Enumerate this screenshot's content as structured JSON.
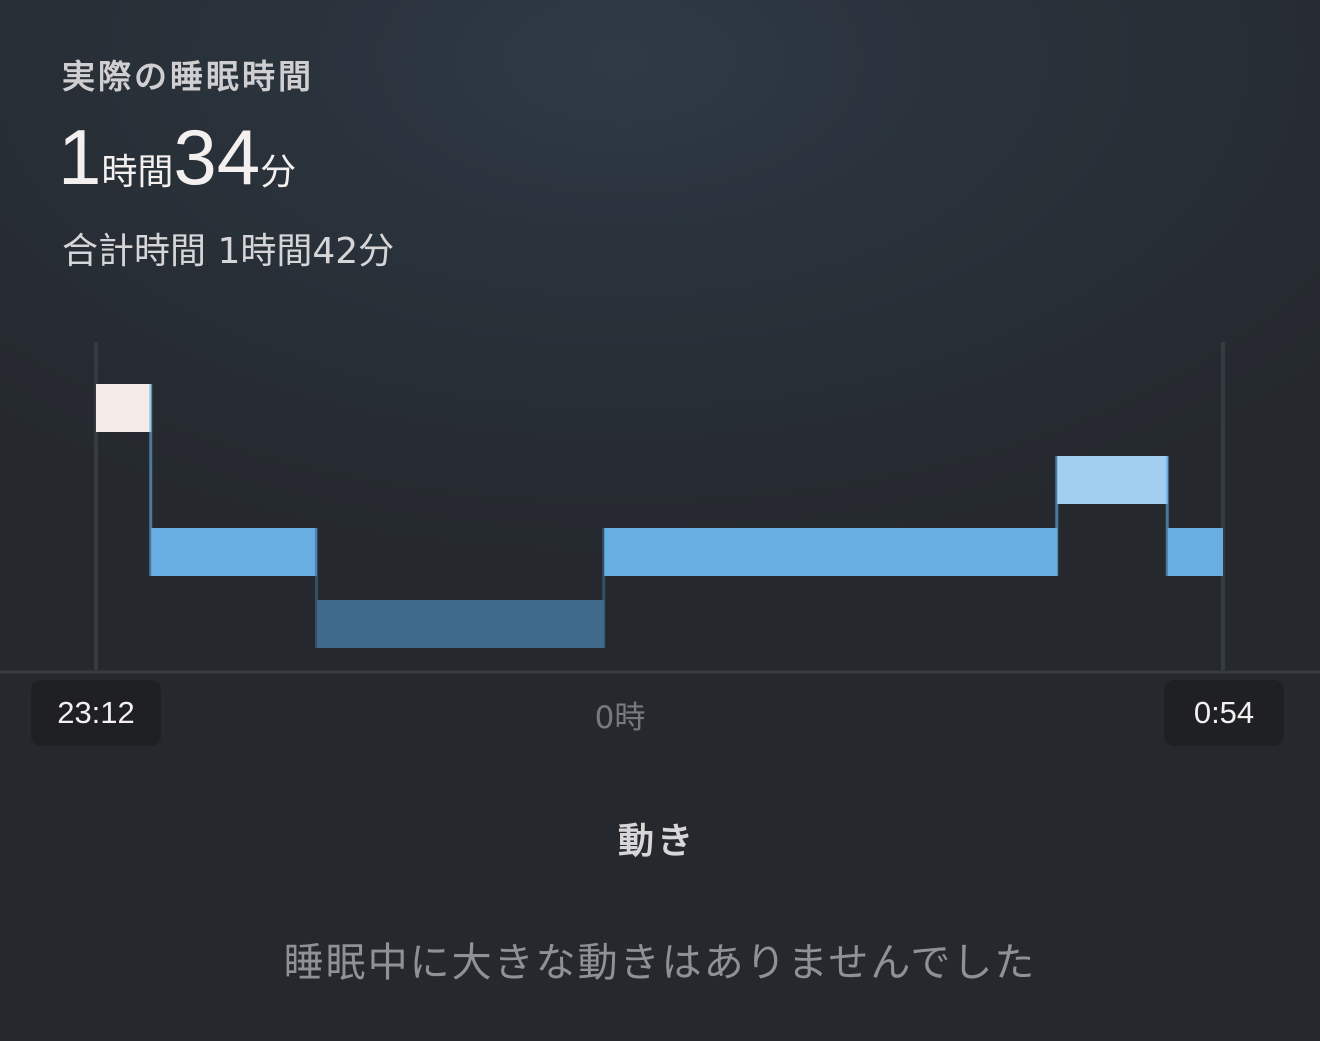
{
  "header": {
    "label": "実際の睡眠時間",
    "actual_hours": "1",
    "hours_unit": "時間",
    "actual_minutes": "34",
    "minutes_unit": "分",
    "total": "合計時間 1時間42分"
  },
  "chart_data": {
    "type": "step",
    "x_start": "23:12",
    "x_end": "0:54",
    "x_tick": "0時",
    "level_colors": [
      "#f4ece9",
      "#a2cff0",
      "#68aee2",
      "#3f6a8b"
    ],
    "segments": [
      {
        "start": "23:12",
        "end": "23:17",
        "level": 0
      },
      {
        "start": "23:17",
        "end": "23:32",
        "level": 2
      },
      {
        "start": "23:32",
        "end": "23:58",
        "level": 3
      },
      {
        "start": "23:58",
        "end": "0:39",
        "level": 2
      },
      {
        "start": "0:39",
        "end": "0:49",
        "level": 1
      },
      {
        "start": "0:49",
        "end": "0:54",
        "level": 2
      }
    ]
  },
  "movement": {
    "title": "動き",
    "message": "睡眠中に大きな動きはありませんでした"
  }
}
